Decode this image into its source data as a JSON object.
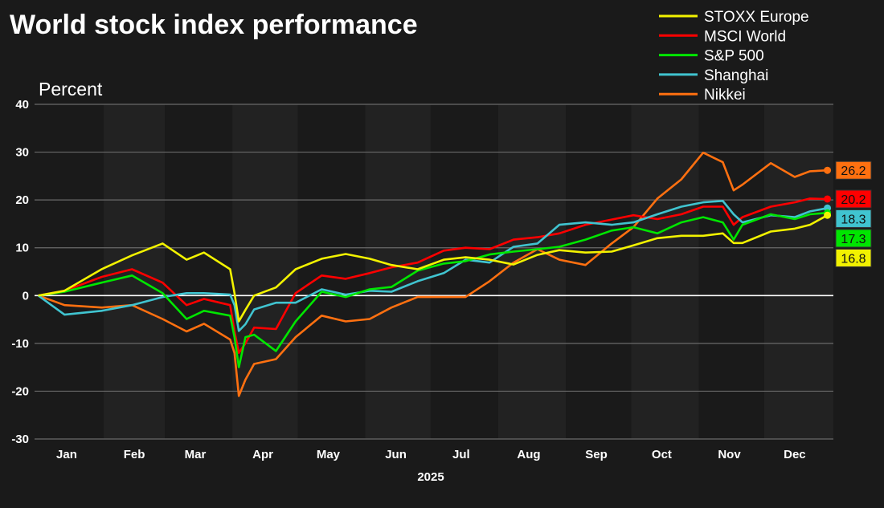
{
  "chart_data": {
    "type": "line",
    "title": "World stock index performance",
    "ylabel": "Percent",
    "xlabel": "2025",
    "ylim": [
      -30,
      40
    ],
    "yticks": [
      40,
      30,
      20,
      10,
      0,
      -10,
      -20,
      -30
    ],
    "xticks": [
      "Jan",
      "Feb",
      "Mar",
      "Apr",
      "May",
      "Jun",
      "Jul",
      "Aug",
      "Sep",
      "Oct",
      "Nov",
      "Dec"
    ],
    "grid": true,
    "legend_position": "top-right",
    "x": [
      "2025-01-02",
      "2025-01-14",
      "2025-01-31",
      "2025-02-14",
      "2025-02-28",
      "2025-03-11",
      "2025-03-19",
      "2025-03-31",
      "2025-04-02",
      "2025-04-04",
      "2025-04-07",
      "2025-04-11",
      "2025-04-21",
      "2025-04-30",
      "2025-05-12",
      "2025-05-23",
      "2025-06-03",
      "2025-06-13",
      "2025-06-25",
      "2025-07-07",
      "2025-07-17",
      "2025-07-28",
      "2025-08-08",
      "2025-08-19",
      "2025-08-29",
      "2025-09-10",
      "2025-09-22",
      "2025-10-02",
      "2025-10-13",
      "2025-10-24",
      "2025-11-03",
      "2025-11-12",
      "2025-11-17",
      "2025-11-21",
      "2025-12-04",
      "2025-12-15",
      "2025-12-22",
      "2025-12-30"
    ],
    "series": [
      {
        "name": "STOXX Europe",
        "color": "#f2f200",
        "end_label": "16.8",
        "values": [
          0,
          1,
          5.5,
          8.4,
          10.9,
          7.5,
          9,
          5.5,
          0.5,
          -5.4,
          -3,
          0,
          1.7,
          5.5,
          7.7,
          8.7,
          7.7,
          6.4,
          5.5,
          7.5,
          8,
          7.5,
          6.5,
          8.5,
          9.5,
          9,
          9.2,
          10.5,
          12,
          12.5,
          12.5,
          13,
          11,
          11,
          13.4,
          14,
          14.8,
          16.8
        ]
      },
      {
        "name": "MSCI World",
        "color": "#ff0000",
        "end_label": "20.2",
        "values": [
          0,
          1,
          3.9,
          5.5,
          2.7,
          -2,
          -0.7,
          -2,
          -7.5,
          -12,
          -10,
          -6.7,
          -7,
          0.5,
          4.2,
          3.5,
          4.7,
          5.9,
          6.9,
          9.4,
          10,
          9.7,
          11.7,
          12.2,
          13,
          14.8,
          15.9,
          16.8,
          16,
          17,
          18.6,
          18.6,
          14.8,
          16.4,
          18.6,
          19.5,
          20.3,
          20.2
        ]
      },
      {
        "name": "S&P 500",
        "color": "#00e600",
        "end_label": "17.3",
        "values": [
          0,
          0.8,
          2.7,
          4.2,
          0.5,
          -4.9,
          -3.2,
          -4.2,
          -8.7,
          -15,
          -8.7,
          -8.2,
          -11.6,
          -5.4,
          0.8,
          -0.3,
          1.3,
          1.8,
          5.2,
          6.7,
          7.2,
          8.6,
          9.2,
          9.7,
          10.2,
          11.7,
          13.6,
          14.3,
          13,
          15.3,
          16.4,
          15.3,
          11.7,
          14.8,
          17,
          16,
          17,
          17.3
        ]
      },
      {
        "name": "Shanghai",
        "color": "#40c4d0",
        "end_label": "18.3",
        "values": [
          0,
          -4,
          -3.2,
          -2,
          -0.3,
          0.5,
          0.5,
          0.2,
          -2,
          -7.4,
          -6,
          -2.9,
          -1.5,
          -1.5,
          1.3,
          0.2,
          1,
          0.8,
          3,
          4.7,
          7.5,
          6.9,
          10.2,
          10.9,
          14.8,
          15.3,
          14.8,
          15.3,
          17,
          18.6,
          19.5,
          19.8,
          17,
          15.3,
          16.8,
          16.4,
          17.6,
          18.3
        ]
      },
      {
        "name": "Nikkei",
        "color": "#ff7010",
        "end_label": "26.2",
        "values": [
          0,
          -2,
          -2.5,
          -2,
          -4.9,
          -7.5,
          -5.9,
          -9.2,
          -12,
          -21,
          -17.6,
          -14.3,
          -13.3,
          -8.7,
          -4.2,
          -5.4,
          -4.9,
          -2.5,
          -0.3,
          -0.3,
          -0.3,
          3,
          6.9,
          9.7,
          7.5,
          6.4,
          10.9,
          14.3,
          20.3,
          24.3,
          29.9,
          27.9,
          22,
          23.2,
          27.7,
          24.8,
          26,
          26.2
        ]
      }
    ]
  }
}
